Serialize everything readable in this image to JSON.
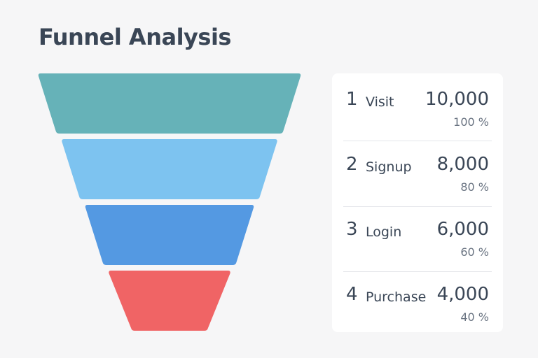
{
  "title": "Funnel Analysis",
  "chart_data": {
    "type": "funnel",
    "title": "Funnel Analysis",
    "stages": [
      {
        "rank": "1",
        "label": "Visit",
        "count": "10,000",
        "percent": "100 %",
        "value": 10000,
        "pct_value": 100,
        "color": "#66b2b8"
      },
      {
        "rank": "2",
        "label": "Signup",
        "count": "8,000",
        "percent": "80 %",
        "value": 8000,
        "pct_value": 80,
        "color": "#7dc3f0"
      },
      {
        "rank": "3",
        "label": "Login",
        "count": "6,000",
        "percent": "60 %",
        "value": 6000,
        "pct_value": 60,
        "color": "#5499e2"
      },
      {
        "rank": "4",
        "label": "Purchase",
        "count": "4,000",
        "percent": "40 %",
        "value": 4000,
        "pct_value": 40,
        "color": "#f06465"
      }
    ]
  }
}
